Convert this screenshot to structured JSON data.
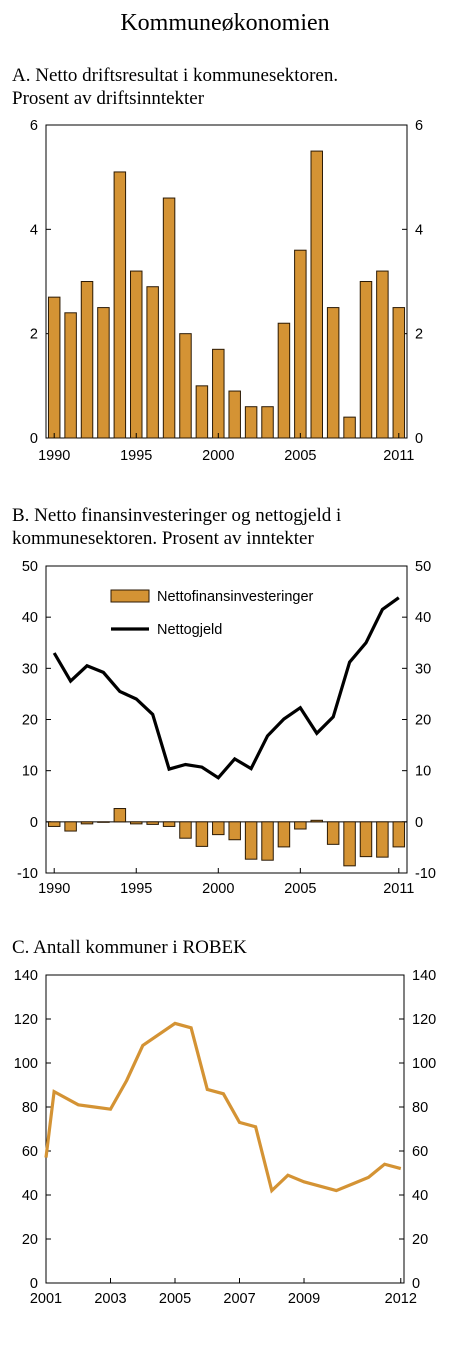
{
  "title": "Kommuneøkonomien",
  "colors": {
    "bar": "#D49334",
    "bar_edge": "#2b1a05",
    "line_b": "#000000",
    "line_c": "#D49334"
  },
  "panels": [
    {
      "label_lines": [
        "A.  Netto driftsresultat i kommunesektoren.",
        "      Prosent av driftsinntekter"
      ],
      "chart_data": {
        "type": "bar",
        "x": [
          1990,
          1991,
          1992,
          1993,
          1994,
          1995,
          1996,
          1997,
          1998,
          1999,
          2000,
          2001,
          2002,
          2003,
          2004,
          2005,
          2006,
          2007,
          2008,
          2009,
          2010,
          2011
        ],
        "values": [
          2.7,
          2.4,
          3.0,
          2.5,
          5.1,
          3.2,
          2.9,
          4.6,
          2.0,
          1.0,
          1.7,
          0.9,
          0.6,
          0.6,
          2.2,
          3.6,
          5.5,
          2.5,
          0.4,
          3.0,
          3.2,
          2.5
        ],
        "ylim": [
          0,
          6
        ],
        "yticks": [
          "0",
          "2",
          "4",
          "6"
        ],
        "xticks": [
          "1990",
          "1995",
          "2000",
          "2005",
          "2011"
        ],
        "grid": false
      }
    },
    {
      "label_lines": [
        "B.  Netto finansinvesteringer og nettogjeld i",
        "      kommunesektoren. Prosent av inntekter"
      ],
      "chart_data": {
        "type": "bar",
        "x": [
          1990,
          1991,
          1992,
          1993,
          1994,
          1995,
          1996,
          1997,
          1998,
          1999,
          2000,
          2001,
          2002,
          2003,
          2004,
          2005,
          2006,
          2007,
          2008,
          2009,
          2010,
          2011
        ],
        "series": [
          {
            "name": "Nettofinansinvesteringer",
            "type": "bar",
            "values": [
              -0.9,
              -1.8,
              -0.4,
              0.0,
              2.6,
              -0.4,
              -0.5,
              -0.9,
              -3.2,
              -4.8,
              -2.5,
              -3.5,
              -7.3,
              -7.5,
              -4.9,
              -1.4,
              0.3,
              -4.4,
              -8.6,
              -6.8,
              -6.9,
              -4.9
            ]
          },
          {
            "name": "Nettogjeld",
            "type": "line",
            "values": [
              33.0,
              27.5,
              30.5,
              29.2,
              25.5,
              24.0,
              21.0,
              10.3,
              11.2,
              10.7,
              8.6,
              12.3,
              10.4,
              16.8,
              20.1,
              22.3,
              17.3,
              20.5,
              31.2,
              35.0,
              41.5,
              43.8
            ]
          }
        ],
        "ylim": [
          -10,
          50
        ],
        "yticks": [
          "-10",
          "0",
          "10",
          "20",
          "30",
          "40",
          "50"
        ],
        "xticks": [
          "1990",
          "1995",
          "2000",
          "2005",
          "2011"
        ],
        "legend": "top-center",
        "grid": false
      }
    },
    {
      "label_lines": [
        "C.  Antall kommuner i ROBEK"
      ],
      "chart_data": {
        "type": "line",
        "x": [
          2001.0,
          2001.25,
          2002.0,
          2002.5,
          2003.0,
          2003.5,
          2004.0,
          2005.0,
          2005.5,
          2006.0,
          2006.5,
          2007.0,
          2007.5,
          2008.0,
          2008.5,
          2009.0,
          2009.5,
          2010.0,
          2010.5,
          2011.0,
          2011.5,
          2012.0
        ],
        "values": [
          57,
          87,
          81,
          80,
          79,
          92,
          108,
          118,
          116,
          88,
          86,
          73,
          71,
          42,
          49,
          46,
          44,
          42,
          45,
          48,
          54,
          52
        ],
        "ylim": [
          0,
          140
        ],
        "yticks": [
          "0",
          "20",
          "40",
          "60",
          "80",
          "100",
          "120",
          "140"
        ],
        "xticks": [
          "2001",
          "2003",
          "2005",
          "2007",
          "2009",
          "2012"
        ],
        "grid": false
      }
    }
  ]
}
